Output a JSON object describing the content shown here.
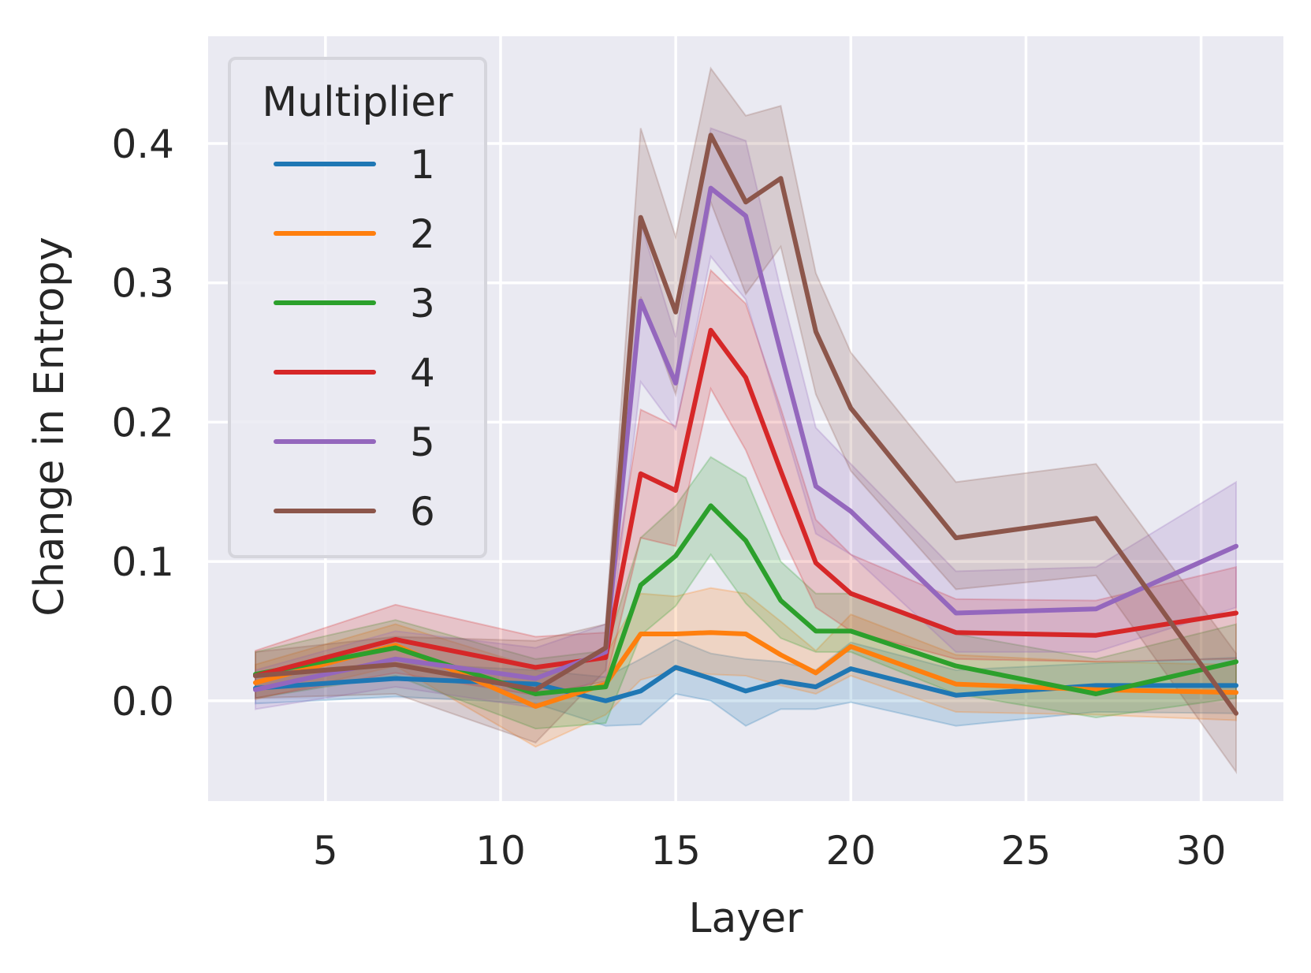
{
  "chart_data": {
    "type": "line",
    "title": "",
    "xlabel": "Layer",
    "ylabel": "Change in Entropy",
    "xlim": [
      1.65,
      32.35
    ],
    "ylim": [
      -0.072,
      0.477
    ],
    "xticks": [
      5,
      10,
      15,
      20,
      25,
      30
    ],
    "xtick_labels": [
      "5",
      "10",
      "15",
      "20",
      "25",
      "30"
    ],
    "yticks": [
      0.0,
      0.1,
      0.2,
      0.3,
      0.4
    ],
    "ytick_labels": [
      "0.0",
      "0.1",
      "0.2",
      "0.3",
      "0.4"
    ],
    "grid": true,
    "background": "#eaeaf2",
    "legend": {
      "title": "Multiplier",
      "position": "upper-left"
    },
    "x": [
      3,
      7,
      11,
      13,
      14,
      15,
      16,
      17,
      18,
      19,
      20,
      23,
      27,
      31
    ],
    "series": [
      {
        "name": "1",
        "color": "#1f77b4",
        "values": [
          0.009,
          0.016,
          0.012,
          0.0,
          0.007,
          0.024,
          0.016,
          0.007,
          0.014,
          0.01,
          0.023,
          0.004,
          0.011,
          0.011
        ],
        "lower": [
          -0.002,
          0.003,
          -0.002,
          -0.018,
          -0.017,
          0.005,
          0.0,
          -0.018,
          -0.006,
          -0.006,
          -0.001,
          -0.018,
          -0.008,
          -0.009
        ],
        "upper": [
          0.02,
          0.027,
          0.022,
          0.017,
          0.03,
          0.044,
          0.034,
          0.03,
          0.028,
          0.022,
          0.042,
          0.022,
          0.027,
          0.031
        ]
      },
      {
        "name": "2",
        "color": "#ff7f0e",
        "values": [
          0.013,
          0.04,
          -0.004,
          0.012,
          0.048,
          0.048,
          0.049,
          0.048,
          0.033,
          0.02,
          0.039,
          0.012,
          0.008,
          0.006
        ],
        "lower": [
          0.001,
          0.025,
          -0.033,
          -0.01,
          0.015,
          0.022,
          0.019,
          0.018,
          0.011,
          0.005,
          0.018,
          -0.008,
          -0.01,
          -0.014
        ],
        "upper": [
          0.026,
          0.055,
          0.024,
          0.033,
          0.077,
          0.075,
          0.081,
          0.077,
          0.057,
          0.036,
          0.062,
          0.033,
          0.028,
          0.026
        ]
      },
      {
        "name": "3",
        "color": "#2ca02c",
        "values": [
          0.019,
          0.038,
          0.005,
          0.01,
          0.083,
          0.104,
          0.14,
          0.115,
          0.072,
          0.05,
          0.05,
          0.025,
          0.005,
          0.028
        ],
        "lower": [
          0.002,
          0.018,
          -0.02,
          -0.016,
          0.047,
          0.068,
          0.105,
          0.07,
          0.045,
          0.035,
          0.035,
          0.005,
          -0.012,
          0.002
        ],
        "upper": [
          0.035,
          0.058,
          0.03,
          0.036,
          0.117,
          0.14,
          0.175,
          0.16,
          0.1,
          0.077,
          0.077,
          0.048,
          0.03,
          0.055
        ]
      },
      {
        "name": "4",
        "color": "#d62728",
        "values": [
          0.018,
          0.044,
          0.024,
          0.031,
          0.163,
          0.151,
          0.266,
          0.232,
          0.165,
          0.099,
          0.077,
          0.049,
          0.047,
          0.063
        ],
        "lower": [
          0.002,
          0.02,
          0.004,
          0.014,
          0.117,
          0.111,
          0.224,
          0.18,
          0.12,
          0.067,
          0.05,
          0.03,
          0.028,
          0.03
        ],
        "upper": [
          0.036,
          0.069,
          0.046,
          0.049,
          0.209,
          0.197,
          0.309,
          0.285,
          0.21,
          0.13,
          0.105,
          0.073,
          0.072,
          0.096
        ]
      },
      {
        "name": "5",
        "color": "#9467bd",
        "values": [
          0.008,
          0.03,
          0.016,
          0.035,
          0.287,
          0.228,
          0.368,
          0.348,
          0.25,
          0.154,
          0.136,
          0.063,
          0.066,
          0.111
        ],
        "lower": [
          -0.006,
          0.01,
          -0.005,
          0.018,
          0.229,
          0.195,
          0.319,
          0.288,
          0.205,
          0.12,
          0.105,
          0.035,
          0.035,
          0.067
        ],
        "upper": [
          0.022,
          0.05,
          0.038,
          0.055,
          0.343,
          0.261,
          0.411,
          0.402,
          0.295,
          0.196,
          0.17,
          0.093,
          0.096,
          0.157
        ]
      },
      {
        "name": "6",
        "color": "#8c564b",
        "values": [
          0.018,
          0.026,
          0.008,
          0.038,
          0.347,
          0.279,
          0.406,
          0.358,
          0.375,
          0.265,
          0.21,
          0.117,
          0.131,
          -0.009
        ],
        "lower": [
          0.002,
          0.005,
          -0.03,
          0.022,
          0.29,
          0.22,
          0.358,
          0.292,
          0.326,
          0.22,
          0.165,
          0.08,
          0.09,
          -0.051
        ],
        "upper": [
          0.035,
          0.046,
          0.043,
          0.055,
          0.411,
          0.333,
          0.454,
          0.42,
          0.427,
          0.307,
          0.25,
          0.157,
          0.17,
          0.034
        ]
      }
    ]
  }
}
